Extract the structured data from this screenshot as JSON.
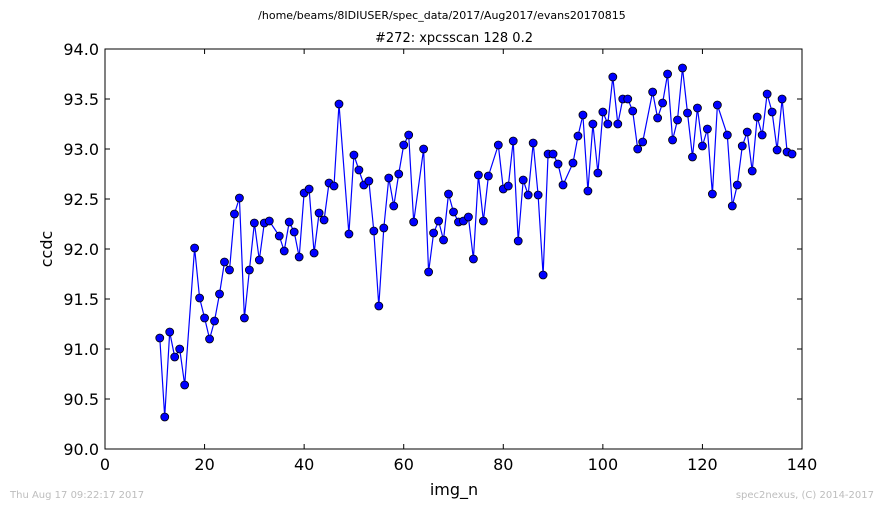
{
  "suptitle": "/home/beams/8IDIUSER/spec_data/2017/Aug2017/evans20170815",
  "footer_left": "Thu Aug 17 09:22:17 2017",
  "footer_right": "spec2nexus, (C) 2014-2017",
  "colors": {
    "marker": "#0000ff",
    "line": "#0000ff",
    "edge": "#000000"
  },
  "chart_data": {
    "type": "line",
    "title": "#272: xpcsscan 128 0.2",
    "xlabel": "img_n",
    "ylabel": "ccdc",
    "xlim": [
      0,
      140
    ],
    "ylim": [
      90.0,
      94.0
    ],
    "xticks": [
      "0",
      "20",
      "40",
      "60",
      "80",
      "100",
      "120",
      "140"
    ],
    "yticks": [
      "90.0",
      "90.5",
      "91.0",
      "91.5",
      "92.0",
      "92.5",
      "93.0",
      "93.5",
      "94.0"
    ],
    "grid": false,
    "legend": "none",
    "marker": "circle",
    "series": [
      {
        "x": [
          11,
          12,
          13,
          14,
          15,
          16,
          18,
          19,
          20,
          21,
          22,
          23,
          24,
          25,
          26,
          27,
          28,
          29,
          30,
          31,
          32,
          33,
          35,
          36,
          37,
          38,
          39,
          40,
          41,
          42,
          43,
          44,
          45,
          46,
          47,
          49,
          50,
          51,
          52,
          53,
          54,
          55,
          56,
          57,
          58,
          59,
          60,
          61,
          62,
          64,
          65,
          66,
          67,
          68,
          69,
          70,
          71,
          72,
          73,
          74,
          75,
          76,
          77,
          79,
          80,
          81,
          82,
          83,
          84,
          85,
          86,
          87,
          88,
          89,
          90,
          91,
          92,
          94,
          95,
          96,
          97,
          98,
          99,
          100,
          101,
          102,
          103,
          104,
          105,
          106,
          107,
          108,
          110,
          111,
          112,
          113,
          114,
          115,
          116,
          117,
          118,
          119,
          120,
          121,
          122,
          123,
          125,
          126,
          127,
          128,
          129,
          130,
          131,
          132,
          133,
          134,
          135,
          136,
          137,
          138
        ],
        "y": [
          91.11,
          90.32,
          91.17,
          90.92,
          91.0,
          90.64,
          92.01,
          91.51,
          91.31,
          91.1,
          91.28,
          91.55,
          91.87,
          91.79,
          92.35,
          92.51,
          91.31,
          91.79,
          92.26,
          91.89,
          92.26,
          92.28,
          92.13,
          91.98,
          92.27,
          92.17,
          91.92,
          92.56,
          92.6,
          91.96,
          92.36,
          92.29,
          92.66,
          92.63,
          93.45,
          92.15,
          92.94,
          92.79,
          92.64,
          92.68,
          92.18,
          91.43,
          92.21,
          92.71,
          92.43,
          92.75,
          93.04,
          93.14,
          92.27,
          93.0,
          91.77,
          92.16,
          92.28,
          92.09,
          92.55,
          92.37,
          92.27,
          92.28,
          92.32,
          91.9,
          92.74,
          92.28,
          92.73,
          93.04,
          92.6,
          92.63,
          93.08,
          92.08,
          92.69,
          92.54,
          93.06,
          92.54,
          91.74,
          92.95,
          92.95,
          92.85,
          92.64,
          92.86,
          93.13,
          93.34,
          92.58,
          93.25,
          92.76,
          93.37,
          93.25,
          93.72,
          93.25,
          93.5,
          93.5,
          93.38,
          93.0,
          93.07,
          93.57,
          93.31,
          93.46,
          93.75,
          93.09,
          93.29,
          93.81,
          93.36,
          92.92,
          93.41,
          93.03,
          93.2,
          92.55,
          93.44,
          93.14,
          92.43,
          92.64,
          93.03,
          93.17,
          92.78,
          93.32,
          93.14,
          93.55,
          93.37,
          92.99,
          93.5,
          92.97,
          92.95
        ]
      }
    ]
  }
}
